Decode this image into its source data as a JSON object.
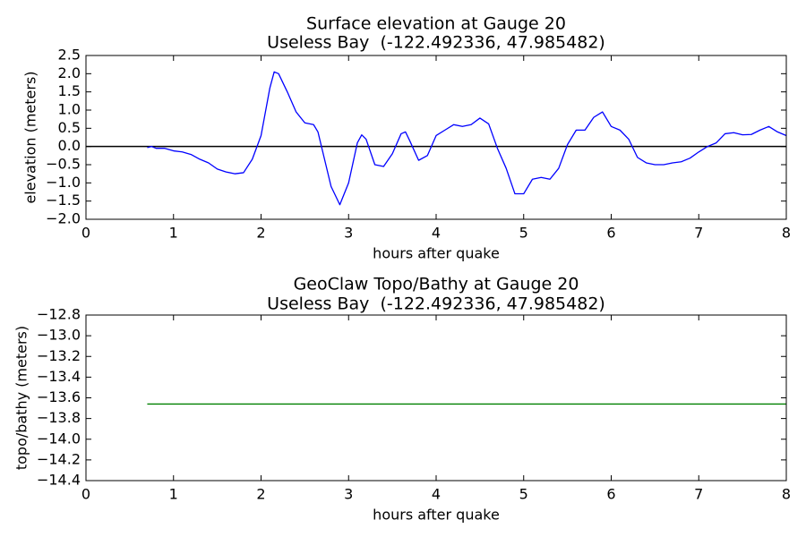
{
  "chart_data": [
    {
      "type": "line",
      "title": [
        "Surface elevation at Gauge 20",
        "Useless Bay  (-122.492336, 47.985482)"
      ],
      "xlabel": "hours after quake",
      "ylabel": "elevation (meters)",
      "xlim": [
        0,
        8
      ],
      "xticks": [
        0,
        1,
        2,
        3,
        4,
        5,
        6,
        7,
        8
      ],
      "ylim": [
        -2.0,
        2.5
      ],
      "yticks": [
        {
          "value": -2.0,
          "label": "−2.0"
        },
        {
          "value": -1.5,
          "label": "−1.5"
        },
        {
          "value": -1.0,
          "label": "−1.0"
        },
        {
          "value": -0.5,
          "label": "−0.5"
        },
        {
          "value": 0.0,
          "label": "0.0"
        },
        0.5,
        {
          "value": 1.0,
          "label": "1.0"
        },
        1.5,
        {
          "value": 2.0,
          "label": "2.0"
        },
        2.5
      ],
      "hline": 0,
      "hline_color": "#000000",
      "series": [
        {
          "color": "#0000ff",
          "x": [
            0.7,
            0.75,
            0.8,
            0.9,
            1.0,
            1.1,
            1.2,
            1.3,
            1.4,
            1.5,
            1.6,
            1.7,
            1.8,
            1.9,
            2.0,
            2.1,
            2.15,
            2.2,
            2.3,
            2.4,
            2.5,
            2.6,
            2.65,
            2.7,
            2.8,
            2.9,
            3.0,
            3.1,
            3.15,
            3.2,
            3.3,
            3.4,
            3.5,
            3.6,
            3.65,
            3.7,
            3.8,
            3.9,
            4.0,
            4.1,
            4.2,
            4.3,
            4.4,
            4.5,
            4.6,
            4.7,
            4.8,
            4.9,
            5.0,
            5.1,
            5.2,
            5.3,
            5.4,
            5.5,
            5.6,
            5.7,
            5.8,
            5.9,
            6.0,
            6.1,
            6.2,
            6.3,
            6.4,
            6.5,
            6.6,
            6.7,
            6.8,
            6.9,
            7.0,
            7.1,
            7.2,
            7.3,
            7.4,
            7.5,
            7.6,
            7.7,
            7.8,
            7.9,
            8.0
          ],
          "values": [
            -0.03,
            0.0,
            -0.05,
            -0.05,
            -0.12,
            -0.15,
            -0.22,
            -0.35,
            -0.45,
            -0.62,
            -0.7,
            -0.75,
            -0.72,
            -0.35,
            0.3,
            1.6,
            2.05,
            2.0,
            1.5,
            0.95,
            0.65,
            0.6,
            0.4,
            -0.1,
            -1.1,
            -1.6,
            -1.0,
            0.1,
            0.32,
            0.2,
            -0.5,
            -0.55,
            -0.2,
            0.35,
            0.4,
            0.15,
            -0.38,
            -0.25,
            0.3,
            0.45,
            0.6,
            0.55,
            0.6,
            0.78,
            0.62,
            -0.05,
            -0.6,
            -1.3,
            -1.3,
            -0.9,
            -0.85,
            -0.9,
            -0.6,
            0.05,
            0.45,
            0.45,
            0.8,
            0.95,
            0.55,
            0.45,
            0.2,
            -0.3,
            -0.45,
            -0.5,
            -0.5,
            -0.45,
            -0.42,
            -0.32,
            -0.15,
            0.0,
            0.1,
            0.35,
            0.38,
            0.32,
            0.33,
            0.45,
            0.55,
            0.4,
            0.3
          ]
        }
      ]
    },
    {
      "type": "line",
      "title": [
        "GeoClaw Topo/Bathy at Gauge 20",
        "Useless Bay  (-122.492336, 47.985482)"
      ],
      "xlabel": "hours after quake",
      "ylabel": "topo/bathy (meters)",
      "xlim": [
        0,
        8
      ],
      "xticks": [
        0,
        1,
        2,
        3,
        4,
        5,
        6,
        7,
        8
      ],
      "ylim": [
        -14.4,
        -12.8
      ],
      "yticks": [
        {
          "value": -14.4,
          "label": "−14.4"
        },
        {
          "value": -14.2,
          "label": "−14.2"
        },
        {
          "value": -14.0,
          "label": "−14.0"
        },
        {
          "value": -13.8,
          "label": "−13.8"
        },
        {
          "value": -13.6,
          "label": "−13.6"
        },
        {
          "value": -13.4,
          "label": "−13.4"
        },
        {
          "value": -13.2,
          "label": "−13.2"
        },
        {
          "value": -13.0,
          "label": "−13.0"
        },
        {
          "value": -12.8,
          "label": "−12.8"
        }
      ],
      "series": [
        {
          "color": "#008000",
          "x": [
            0.7,
            8.0
          ],
          "values": [
            -13.66,
            -13.66
          ]
        }
      ]
    }
  ]
}
